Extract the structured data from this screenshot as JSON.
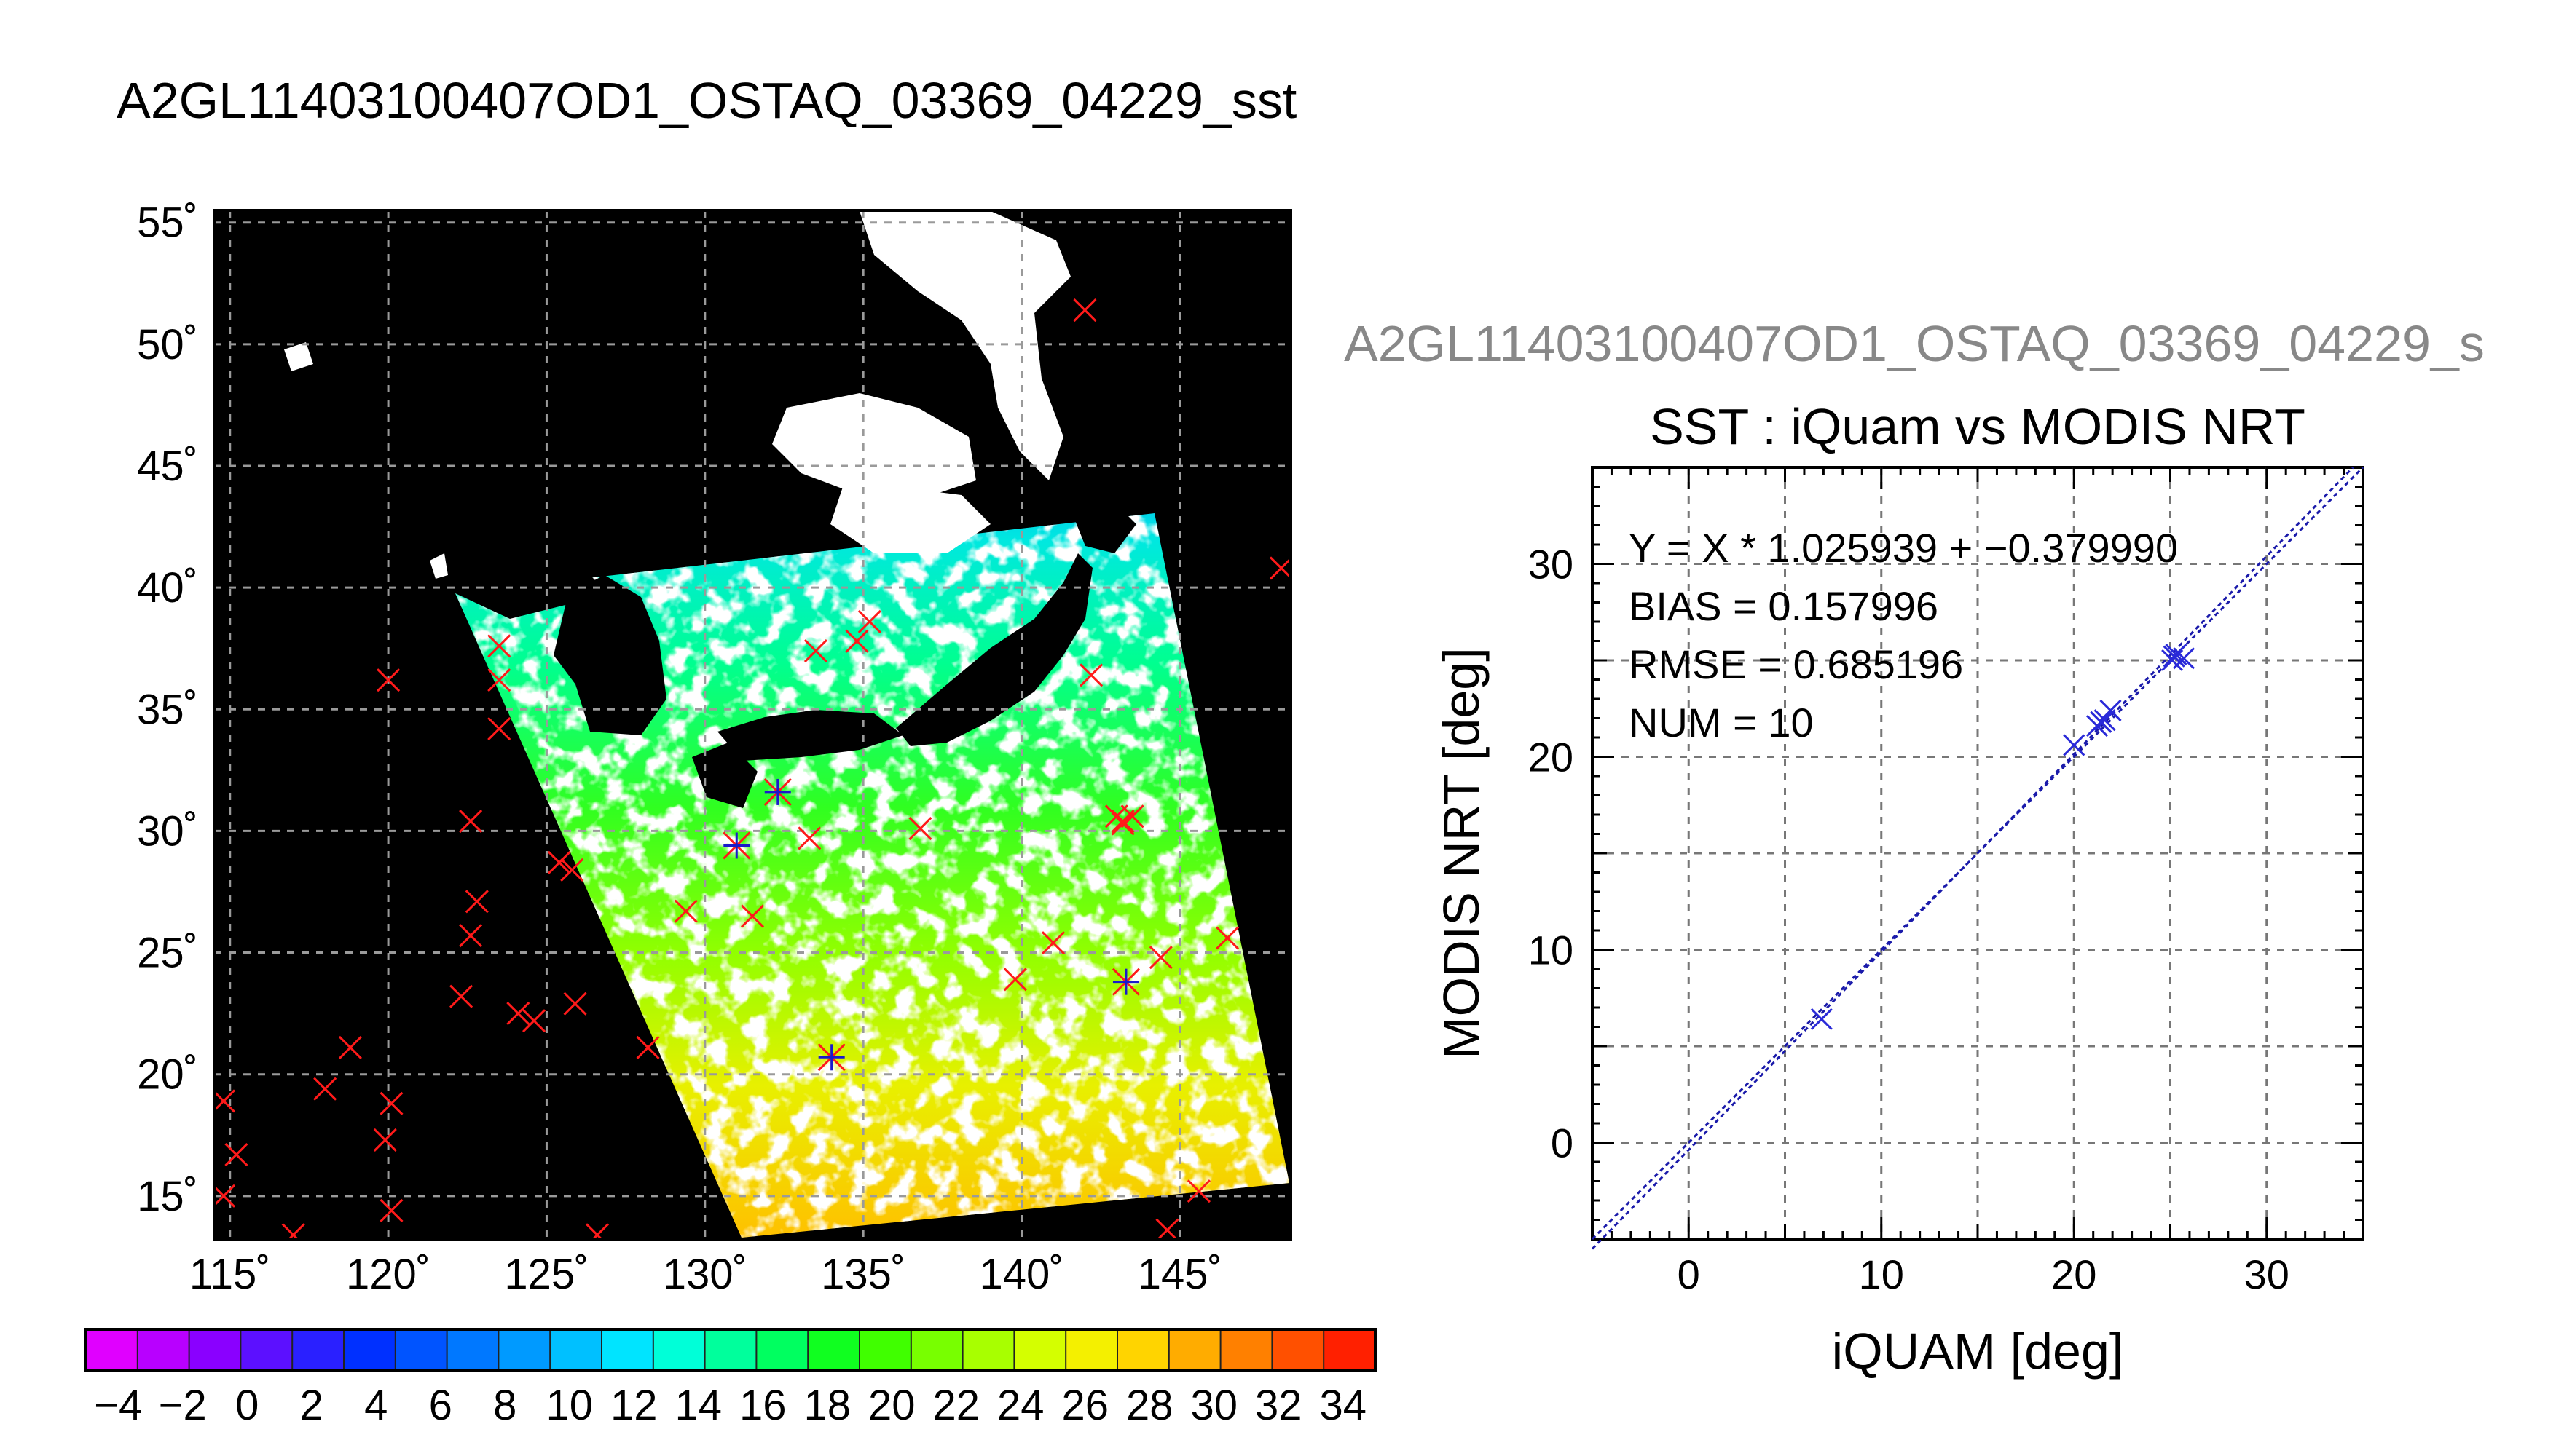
{
  "header": {
    "title": "A2GL11403100407OD1_OSTAQ_03369_04229_sst",
    "right_title": "A2GL11403100407OD1_OSTAQ_03369_04229_s"
  },
  "map": {
    "lat_labels": [
      "55˚",
      "50˚",
      "45˚",
      "40˚",
      "35˚",
      "30˚",
      "25˚",
      "20˚",
      "15˚"
    ],
    "lon_labels": [
      "115˚",
      "120˚",
      "125˚",
      "130˚",
      "135˚",
      "140˚",
      "145˚"
    ],
    "lon_range": [
      114.5,
      148.5
    ],
    "lat_range": [
      13.2,
      55.5
    ],
    "stations_red": [
      [
        142,
        51.4
      ],
      [
        120,
        36.2
      ],
      [
        123.5,
        37.6
      ],
      [
        123.5,
        36.2
      ],
      [
        123.5,
        34.2
      ],
      [
        133.5,
        37.4
      ],
      [
        134.8,
        37.8
      ],
      [
        135.2,
        38.6
      ],
      [
        142.2,
        36.4
      ],
      [
        148.2,
        40.8
      ],
      [
        122.6,
        30.4
      ],
      [
        122.8,
        27.1
      ],
      [
        122.6,
        25.7
      ],
      [
        122.3,
        23.2
      ],
      [
        124.1,
        22.5
      ],
      [
        124.6,
        22.2
      ],
      [
        125.4,
        28.7
      ],
      [
        125.8,
        28.4
      ],
      [
        125.9,
        22.9
      ],
      [
        118.8,
        21.1
      ],
      [
        118,
        19.4
      ],
      [
        120.1,
        18.8
      ],
      [
        119.9,
        17.3
      ],
      [
        120.1,
        14.4
      ],
      [
        114.8,
        18.9
      ],
      [
        115.2,
        16.7
      ],
      [
        114.8,
        15
      ],
      [
        117,
        13.4
      ],
      [
        126.6,
        13.4
      ],
      [
        128.2,
        21.1
      ],
      [
        129.4,
        26.7
      ],
      [
        131.5,
        26.5
      ],
      [
        133.3,
        29.7
      ],
      [
        136.8,
        30.1
      ],
      [
        139.8,
        23.9
      ],
      [
        141,
        25.4
      ],
      [
        143,
        30.6
      ],
      [
        143.2,
        30.4
      ],
      [
        143.5,
        30.6
      ],
      [
        143.2,
        30.3
      ],
      [
        144.4,
        24.8
      ],
      [
        146.5,
        25.6
      ],
      [
        145.6,
        15.2
      ],
      [
        144.6,
        13.6
      ]
    ],
    "stations_matched": [
      [
        131,
        29.4
      ],
      [
        132.3,
        31.6
      ],
      [
        134,
        20.7
      ],
      [
        143.3,
        23.8
      ]
    ],
    "colors": {
      "land": "#000000",
      "cloud": "#ffffff",
      "marker_red": "#ff1a1a",
      "marker_blue": "#1a1acc"
    }
  },
  "colorbar": {
    "labels": [
      "−4",
      "−2",
      "0",
      "2",
      "4",
      "6",
      "8",
      "10",
      "12",
      "14",
      "16",
      "18",
      "20",
      "22",
      "24",
      "26",
      "28",
      "30",
      "32",
      "34"
    ],
    "range": [
      -5,
      35
    ],
    "colors": [
      "#e000ff",
      "#b800ff",
      "#8a00ff",
      "#5c10ff",
      "#2a20ff",
      "#0030ff",
      "#0054ff",
      "#0078ff",
      "#009aff",
      "#00c0ff",
      "#00e4ff",
      "#00ffd8",
      "#00ff9c",
      "#00ff60",
      "#10ff20",
      "#40ff00",
      "#78ff00",
      "#a8ff00",
      "#d4ff00",
      "#f4f000",
      "#ffd400",
      "#ffac00",
      "#ff8000",
      "#ff5000",
      "#ff2000"
    ]
  },
  "scatter": {
    "stats": [
      "Y = X * 1.025939 + −0.379990",
      "BIAS = 0.157996",
      "RMSE = 0.685196",
      "NUM = 10"
    ]
  },
  "chart_data": {
    "type": "scatter",
    "title": "SST : iQuam vs MODIS NRT",
    "xlabel": "iQUAM [deg]",
    "ylabel": "MODIS NRT [deg]",
    "xlim": [
      -5,
      35
    ],
    "ylim": [
      -5,
      35
    ],
    "xticks": [
      "0",
      "10",
      "20",
      "30"
    ],
    "yticks": [
      "0",
      "10",
      "20",
      "30"
    ],
    "grid": true,
    "x": [
      6.9,
      20.0,
      21.2,
      21.4,
      21.6,
      21.9,
      25.1,
      25.3,
      25.7,
      25.2
    ],
    "y": [
      6.4,
      20.6,
      21.6,
      21.8,
      21.9,
      22.4,
      25.0,
      25.3,
      25.1,
      25.2
    ],
    "regression": {
      "slope": 1.025939,
      "intercept": -0.37999
    }
  }
}
